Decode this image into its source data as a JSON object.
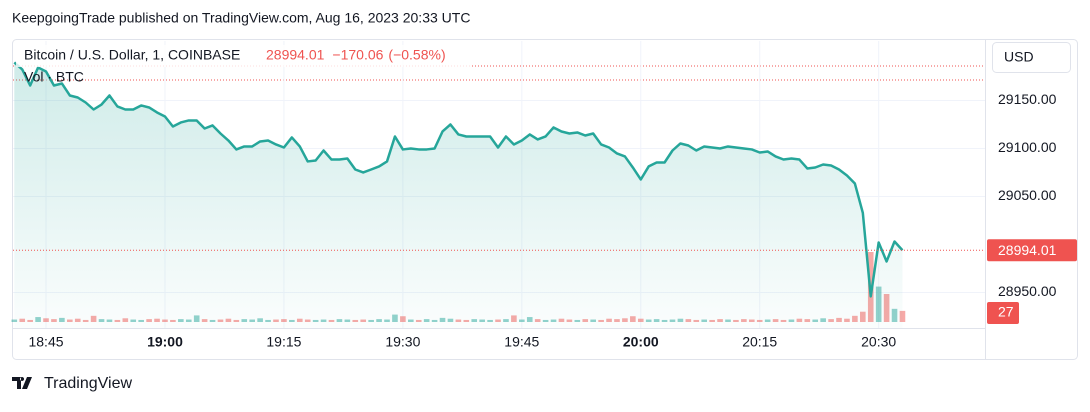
{
  "header": {
    "publisher": "KeepgoingTrade published on TradingView.com, Aug 16, 2023 20:33 UTC"
  },
  "footer": {
    "brand": "TradingView"
  },
  "chart_data": {
    "type": "line",
    "title": "Bitcoin / U.S. Dollar, 1, COINBASE",
    "change": {
      "value": -170.06,
      "label": "−170.06"
    },
    "change_percent": {
      "value": -0.58,
      "label": "(−0.58%)"
    },
    "currency": "USD",
    "volume_label": "Vol · BTC",
    "color": "#26a69a",
    "down_color": "#ef5350",
    "grid": true,
    "ylim": [
      28913,
      29213
    ],
    "yticks": [
      {
        "value": 28950,
        "label": "28950.00"
      },
      {
        "value": 29050,
        "label": "29050.00"
      },
      {
        "value": 29100,
        "label": "29100.00"
      },
      {
        "value": 29150,
        "label": "29150.00"
      }
    ],
    "xticks": [
      "18:45",
      "19:00",
      "19:15",
      "19:30",
      "19:45",
      "20:00",
      "20:15",
      "20:30"
    ],
    "x": [
      "18:41",
      "18:42",
      "18:43",
      "18:44",
      "18:45",
      "18:46",
      "18:47",
      "18:48",
      "18:49",
      "18:50",
      "18:51",
      "18:52",
      "18:53",
      "18:54",
      "18:55",
      "18:56",
      "18:57",
      "18:58",
      "18:59",
      "19:00",
      "19:01",
      "19:02",
      "19:03",
      "19:04",
      "19:05",
      "19:06",
      "19:07",
      "19:08",
      "19:09",
      "19:10",
      "19:11",
      "19:12",
      "19:13",
      "19:14",
      "19:15",
      "19:16",
      "19:17",
      "19:18",
      "19:19",
      "19:20",
      "19:21",
      "19:22",
      "19:23",
      "19:24",
      "19:25",
      "19:26",
      "19:27",
      "19:28",
      "19:29",
      "19:30",
      "19:31",
      "19:32",
      "19:33",
      "19:34",
      "19:35",
      "19:36",
      "19:37",
      "19:38",
      "19:39",
      "19:40",
      "19:41",
      "19:42",
      "19:43",
      "19:44",
      "19:45",
      "19:46",
      "19:47",
      "19:48",
      "19:49",
      "19:50",
      "19:51",
      "19:52",
      "19:53",
      "19:54",
      "19:55",
      "19:56",
      "19:57",
      "19:58",
      "19:59",
      "20:00",
      "20:01",
      "20:02",
      "20:03",
      "20:04",
      "20:05",
      "20:06",
      "20:07",
      "20:08",
      "20:09",
      "20:10",
      "20:11",
      "20:12",
      "20:13",
      "20:14",
      "20:15",
      "20:16",
      "20:17",
      "20:18",
      "20:19",
      "20:20",
      "20:21",
      "20:22",
      "20:23",
      "20:24",
      "20:25",
      "20:26",
      "20:27",
      "20:28",
      "20:29",
      "20:30",
      "20:31",
      "20:32",
      "20:33"
    ],
    "values": [
      29189.6,
      29182.3,
      29165.6,
      29184.4,
      29180.2,
      29165.6,
      29167.7,
      29155.2,
      29153.1,
      29147.9,
      29140.6,
      29145.8,
      29155.2,
      29143.8,
      29140.6,
      29140.6,
      29144.8,
      29142.7,
      29137.5,
      29133.3,
      29122.9,
      29127.1,
      29129.2,
      29129.2,
      29120.8,
      29124.0,
      29115.6,
      29108.3,
      29099.0,
      29102.1,
      29102.1,
      29107.3,
      29108.3,
      29104.2,
      29101.0,
      29111.5,
      29102.1,
      29086.5,
      29087.5,
      29097.9,
      29088.5,
      29088.5,
      29089.6,
      29078.1,
      29075.0,
      29078.1,
      29081.3,
      29086.5,
      29112.5,
      29099.0,
      29100.0,
      29099.0,
      29099.0,
      29100.0,
      29117.7,
      29125.0,
      29114.6,
      29112.5,
      29112.5,
      29112.5,
      29112.5,
      29101.0,
      29112.5,
      29104.2,
      29108.3,
      29114.6,
      29109.4,
      29112.5,
      29121.9,
      29117.7,
      29115.6,
      29116.7,
      29113.5,
      29115.6,
      29104.2,
      29101.0,
      29094.8,
      29091.7,
      29080.2,
      29067.7,
      29081.3,
      29085.4,
      29085.4,
      29097.9,
      29105.2,
      29103.1,
      29097.9,
      29102.1,
      29101.0,
      29100.0,
      29102.1,
      29101.0,
      29100.0,
      29099.0,
      29095.8,
      29096.9,
      29091.7,
      29088.5,
      29089.6,
      29088.5,
      29079.2,
      29080.2,
      29083.3,
      29082.3,
      29078.1,
      29071.9,
      29063.5,
      29033.0,
      28946.0,
      29002.1,
      28982.3,
      29003.1,
      28994.01
    ],
    "volume_values": [
      6,
      8,
      5,
      12,
      9,
      7,
      10,
      6,
      8,
      5,
      15,
      7,
      6,
      5,
      9,
      6,
      5,
      7,
      8,
      6,
      5,
      7,
      6,
      16,
      7,
      5,
      6,
      8,
      5,
      7,
      6,
      9,
      5,
      6,
      7,
      5,
      8,
      6,
      5,
      6,
      5,
      7,
      6,
      5,
      6,
      5,
      7,
      6,
      18,
      14,
      6,
      5,
      7,
      5,
      10,
      8,
      6,
      5,
      7,
      6,
      5,
      6,
      7,
      16,
      6,
      12,
      7,
      5,
      6,
      8,
      6,
      5,
      7,
      6,
      5,
      8,
      7,
      9,
      14,
      8,
      6,
      7,
      5,
      6,
      8,
      7,
      5,
      6,
      5,
      7,
      6,
      5,
      7,
      6,
      5,
      6,
      7,
      5,
      6,
      8,
      7,
      6,
      9,
      7,
      10,
      8,
      15,
      25,
      170,
      86,
      68,
      32,
      27
    ]
  }
}
